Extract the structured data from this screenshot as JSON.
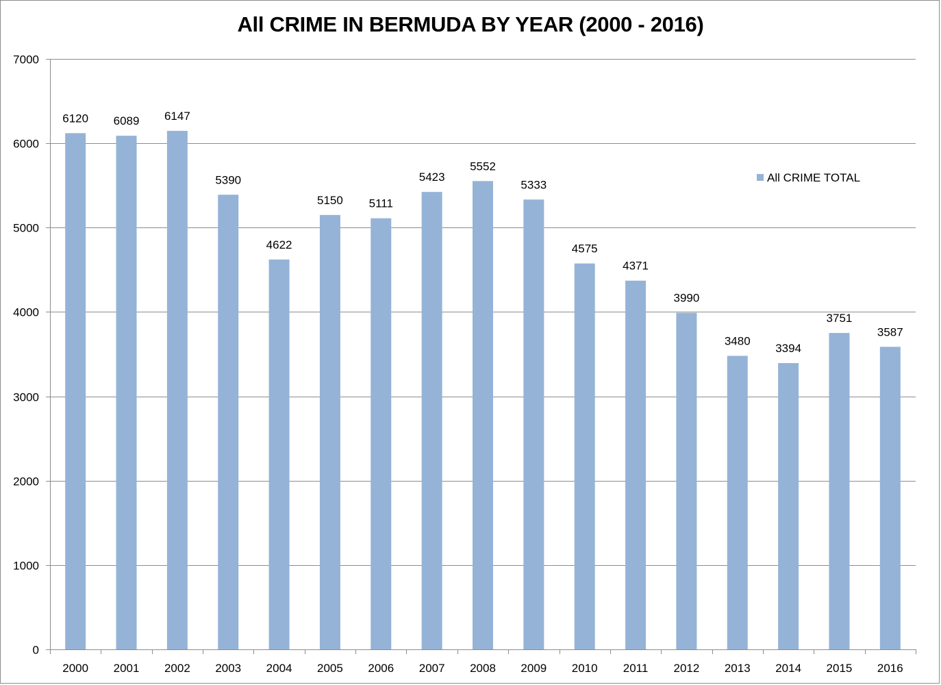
{
  "chart_data": {
    "type": "bar",
    "title": "All CRIME IN BERMUDA BY YEAR (2000 - 2016)",
    "xlabel": "",
    "ylabel": "",
    "categories": [
      "2000",
      "2001",
      "2002",
      "2003",
      "2004",
      "2005",
      "2006",
      "2007",
      "2008",
      "2009",
      "2010",
      "2011",
      "2012",
      "2013",
      "2014",
      "2015",
      "2016"
    ],
    "series": [
      {
        "name": "All CRIME TOTAL",
        "values": [
          6120,
          6089,
          6147,
          5390,
          4622,
          5150,
          5111,
          5423,
          5552,
          5333,
          4575,
          4371,
          3990,
          3480,
          3394,
          3751,
          3587
        ],
        "color": "#95b3d7"
      }
    ],
    "ylim": [
      0,
      7000
    ],
    "yticks": [
      "0",
      "1000",
      "2000",
      "3000",
      "4000",
      "5000",
      "6000",
      "7000"
    ],
    "grid": true,
    "gridline_color": "#8c8c8c",
    "legend": "right",
    "data_labels": true
  }
}
